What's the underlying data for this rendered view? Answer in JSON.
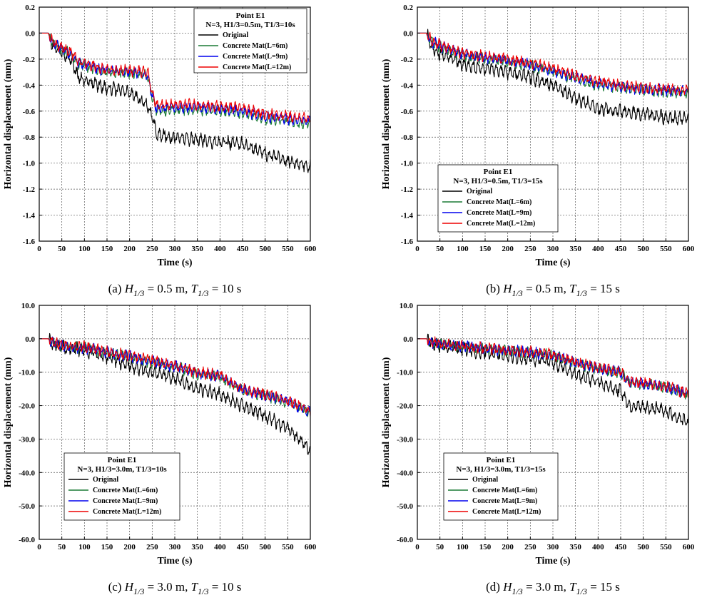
{
  "colors": {
    "Original": "#000000",
    "Concrete Mat(L=6m)": "#1a7a35",
    "Concrete Mat(L=9m)": "#0000ee",
    "Concrete Mat(L=12m)": "#ee0000"
  },
  "chart_data": [
    {
      "id": "a",
      "type": "line",
      "title": "Point E1",
      "subtitle": "N=3, H1/3=0.5m, T1/3=10s",
      "caption": "(a) H1/3 = 0.5 m, T1/3 = 10 s",
      "caption_parts": {
        "label": "(a)",
        "h": "H",
        "hsub": "1/3",
        "hval": "= 0.5 m,",
        "t": "T",
        "tsub": "1/3",
        "tval": "= 10 s"
      },
      "xlabel": "Time (s)",
      "ylabel": "Horizontal displacement (mm)",
      "xlim": [
        0,
        600
      ],
      "ylim": [
        -1.6,
        0.2
      ],
      "xticks": [
        "0",
        "50",
        "100",
        "150",
        "200",
        "250",
        "300",
        "350",
        "400",
        "450",
        "500",
        "550",
        "600"
      ],
      "yticks": [
        "0.2",
        "0.0",
        "-0.2",
        "-0.4",
        "-0.6",
        "-0.8",
        "-1.0",
        "-1.2",
        "-1.4",
        "-1.6"
      ],
      "legend_position": "top-right",
      "grid": true,
      "series": [
        {
          "name": "Original",
          "x": [
            0,
            20,
            30,
            50,
            70,
            85,
            100,
            150,
            200,
            240,
            250,
            260,
            300,
            350,
            400,
            450,
            500,
            550,
            600
          ],
          "values": [
            0,
            0,
            -0.1,
            -0.15,
            -0.2,
            -0.33,
            -0.36,
            -0.42,
            -0.46,
            -0.55,
            -0.65,
            -0.78,
            -0.8,
            -0.82,
            -0.84,
            -0.85,
            -0.93,
            -0.98,
            -1.02
          ]
        },
        {
          "name": "Concrete Mat(L=6m)",
          "x": [
            0,
            20,
            30,
            50,
            70,
            85,
            100,
            150,
            200,
            240,
            250,
            260,
            300,
            350,
            400,
            450,
            500,
            550,
            600
          ],
          "values": [
            0,
            0,
            -0.08,
            -0.12,
            -0.16,
            -0.23,
            -0.25,
            -0.3,
            -0.31,
            -0.33,
            -0.5,
            -0.6,
            -0.59,
            -0.59,
            -0.6,
            -0.62,
            -0.66,
            -0.68,
            -0.7
          ]
        },
        {
          "name": "Concrete Mat(L=9m)",
          "x": [
            0,
            20,
            30,
            50,
            70,
            85,
            100,
            150,
            200,
            240,
            250,
            260,
            300,
            350,
            400,
            450,
            500,
            550,
            600
          ],
          "values": [
            0,
            0,
            -0.08,
            -0.12,
            -0.16,
            -0.22,
            -0.24,
            -0.29,
            -0.3,
            -0.32,
            -0.48,
            -0.58,
            -0.57,
            -0.57,
            -0.58,
            -0.6,
            -0.64,
            -0.66,
            -0.68
          ]
        },
        {
          "name": "Concrete Mat(L=12m)",
          "x": [
            0,
            20,
            30,
            50,
            70,
            85,
            100,
            150,
            200,
            240,
            250,
            260,
            300,
            350,
            400,
            450,
            500,
            550,
            600
          ],
          "values": [
            0,
            0,
            -0.07,
            -0.11,
            -0.15,
            -0.21,
            -0.23,
            -0.28,
            -0.29,
            -0.3,
            -0.46,
            -0.56,
            -0.55,
            -0.55,
            -0.56,
            -0.58,
            -0.62,
            -0.64,
            -0.66
          ]
        }
      ]
    },
    {
      "id": "b",
      "type": "line",
      "title": "Point E1",
      "subtitle": "N=3, H1/3=0.5m, T1/3=15s",
      "caption": "(b) H1/3 = 0.5 m, T1/3 = 15 s",
      "caption_parts": {
        "label": "(b)",
        "h": "H",
        "hsub": "1/3",
        "hval": "= 0.5 m,",
        "t": "T",
        "tsub": "1/3",
        "tval": "= 15 s"
      },
      "xlabel": "Time (s)",
      "ylabel": "Horizontal displacement (mm)",
      "xlim": [
        0,
        600
      ],
      "ylim": [
        -1.6,
        0.2
      ],
      "xticks": [
        "0",
        "50",
        "100",
        "150",
        "200",
        "250",
        "300",
        "350",
        "400",
        "450",
        "500",
        "550",
        "600"
      ],
      "yticks": [
        "0.2",
        "0.0",
        "-0.2",
        "-0.4",
        "-0.6",
        "-0.8",
        "-1.0",
        "-1.2",
        "-1.4",
        "-1.6"
      ],
      "legend_position": "bottom-left",
      "grid": true,
      "series": [
        {
          "name": "Original",
          "x": [
            0,
            20,
            30,
            50,
            100,
            150,
            200,
            250,
            300,
            350,
            400,
            450,
            500,
            550,
            600
          ],
          "values": [
            0,
            0,
            -0.1,
            -0.16,
            -0.24,
            -0.27,
            -0.3,
            -0.34,
            -0.4,
            -0.5,
            -0.58,
            -0.6,
            -0.62,
            -0.65,
            -0.66
          ]
        },
        {
          "name": "Concrete Mat(L=6m)",
          "x": [
            0,
            20,
            30,
            50,
            100,
            150,
            200,
            250,
            300,
            350,
            400,
            450,
            500,
            550,
            600
          ],
          "values": [
            0,
            0,
            -0.06,
            -0.11,
            -0.17,
            -0.2,
            -0.22,
            -0.25,
            -0.3,
            -0.35,
            -0.4,
            -0.42,
            -0.44,
            -0.45,
            -0.46
          ]
        },
        {
          "name": "Concrete Mat(L=9m)",
          "x": [
            0,
            20,
            30,
            50,
            100,
            150,
            200,
            250,
            300,
            350,
            400,
            450,
            500,
            550,
            600
          ],
          "values": [
            0,
            0,
            -0.06,
            -0.1,
            -0.16,
            -0.19,
            -0.21,
            -0.24,
            -0.29,
            -0.34,
            -0.39,
            -0.41,
            -0.43,
            -0.44,
            -0.45
          ]
        },
        {
          "name": "Concrete Mat(L=12m)",
          "x": [
            0,
            20,
            30,
            50,
            100,
            150,
            200,
            250,
            300,
            350,
            400,
            450,
            500,
            550,
            600
          ],
          "values": [
            0,
            0,
            -0.05,
            -0.09,
            -0.15,
            -0.18,
            -0.2,
            -0.23,
            -0.27,
            -0.33,
            -0.37,
            -0.4,
            -0.42,
            -0.43,
            -0.44
          ]
        }
      ]
    },
    {
      "id": "c",
      "type": "line",
      "title": "Point E1",
      "subtitle": "N=3, H1/3=3.0m, T1/3=10s",
      "caption": "(c) H1/3 = 3.0 m, T1/3 = 10 s",
      "caption_parts": {
        "label": "(c)",
        "h": "H",
        "hsub": "1/3",
        "hval": "= 3.0 m,",
        "t": "T",
        "tsub": "1/3",
        "tval": "= 10 s"
      },
      "xlabel": "Time (s)",
      "ylabel": "Horizontal displacement (mm)",
      "xlim": [
        0,
        600
      ],
      "ylim": [
        -60,
        10
      ],
      "xticks": [
        "0",
        "50",
        "100",
        "150",
        "200",
        "250",
        "300",
        "350",
        "400",
        "450",
        "500",
        "550",
        "600"
      ],
      "yticks": [
        "10.0",
        "0.0",
        "-10.0",
        "-20.0",
        "-30.0",
        "-40.0",
        "-50.0",
        "-60.0"
      ],
      "legend_position": "bottom-left",
      "grid": true,
      "series": [
        {
          "name": "Original",
          "x": [
            0,
            20,
            30,
            50,
            100,
            150,
            200,
            250,
            300,
            350,
            400,
            450,
            500,
            550,
            600
          ],
          "values": [
            0,
            0,
            -1.5,
            -2.5,
            -3.5,
            -5.5,
            -8,
            -10,
            -12,
            -15,
            -16.5,
            -20,
            -23,
            -27,
            -33
          ]
        },
        {
          "name": "Concrete Mat(L=6m)",
          "x": [
            0,
            20,
            30,
            50,
            100,
            150,
            200,
            250,
            300,
            350,
            400,
            450,
            500,
            550,
            600
          ],
          "values": [
            0,
            0,
            -1.2,
            -2.2,
            -2.8,
            -4.2,
            -5.5,
            -7,
            -8.5,
            -10.5,
            -11.5,
            -15.5,
            -17,
            -19,
            -22
          ]
        },
        {
          "name": "Concrete Mat(L=9m)",
          "x": [
            0,
            20,
            30,
            50,
            100,
            150,
            200,
            250,
            300,
            350,
            400,
            450,
            500,
            550,
            600
          ],
          "values": [
            0,
            0,
            -1.1,
            -2.1,
            -2.7,
            -4,
            -5.3,
            -6.8,
            -8.3,
            -10.3,
            -11.3,
            -15.3,
            -16.8,
            -18.8,
            -22
          ]
        },
        {
          "name": "Concrete Mat(L=12m)",
          "x": [
            0,
            20,
            30,
            50,
            100,
            150,
            200,
            250,
            300,
            350,
            400,
            450,
            500,
            550,
            600
          ],
          "values": [
            0,
            0,
            -1,
            -2,
            -2.5,
            -3.8,
            -5,
            -6.5,
            -8,
            -10,
            -11,
            -15,
            -16.5,
            -18.5,
            -21.5
          ]
        }
      ]
    },
    {
      "id": "d",
      "type": "line",
      "title": "Point E1",
      "subtitle": "N=3, H1/3=3.0m, T1/3=15s",
      "caption": "(d) H1/3 = 3.0 m, T1/3 = 15 s",
      "caption_parts": {
        "label": "(d)",
        "h": "H",
        "hsub": "1/3",
        "hval": "= 3.0 m,",
        "t": "T",
        "tsub": "1/3",
        "tval": "= 15 s"
      },
      "xlabel": "Time (s)",
      "ylabel": "Horizontal displacement (mm)",
      "xlim": [
        0,
        600
      ],
      "ylim": [
        -60,
        10
      ],
      "xticks": [
        "0",
        "50",
        "100",
        "150",
        "200",
        "250",
        "300",
        "350",
        "400",
        "450",
        "500",
        "550",
        "600"
      ],
      "yticks": [
        "10.0",
        "0.0",
        "-10.0",
        "-20.0",
        "-30.0",
        "-40.0",
        "-50.0",
        "-60.0"
      ],
      "legend_position": "bottom-left",
      "grid": true,
      "series": [
        {
          "name": "Original",
          "x": [
            0,
            20,
            30,
            50,
            100,
            150,
            200,
            250,
            300,
            350,
            400,
            450,
            470,
            500,
            550,
            600
          ],
          "values": [
            0,
            0,
            -1.2,
            -2,
            -3,
            -4,
            -5,
            -6,
            -7,
            -10.5,
            -13,
            -15.5,
            -20,
            -20.5,
            -21.5,
            -25
          ]
        },
        {
          "name": "Concrete Mat(L=6m)",
          "x": [
            0,
            20,
            30,
            50,
            100,
            150,
            200,
            250,
            300,
            350,
            400,
            450,
            470,
            500,
            550,
            600
          ],
          "values": [
            0,
            0,
            -1,
            -1.5,
            -2.3,
            -3,
            -3.6,
            -4.2,
            -5,
            -7.3,
            -9,
            -10.3,
            -13.2,
            -13.6,
            -14.5,
            -16.7
          ]
        },
        {
          "name": "Concrete Mat(L=9m)",
          "x": [
            0,
            20,
            30,
            50,
            100,
            150,
            200,
            250,
            300,
            350,
            400,
            450,
            470,
            500,
            550,
            600
          ],
          "values": [
            0,
            0,
            -1,
            -1.5,
            -2.2,
            -2.9,
            -3.5,
            -4.1,
            -4.9,
            -7.1,
            -8.8,
            -10.1,
            -13,
            -13.4,
            -14.3,
            -16.6
          ]
        },
        {
          "name": "Concrete Mat(L=12m)",
          "x": [
            0,
            20,
            30,
            50,
            100,
            150,
            200,
            250,
            300,
            350,
            400,
            450,
            470,
            500,
            550,
            600
          ],
          "values": [
            0,
            0,
            -0.9,
            -1.4,
            -2.1,
            -2.8,
            -3.4,
            -4,
            -4.7,
            -6.9,
            -8.6,
            -9.9,
            -12.8,
            -13.2,
            -14.1,
            -16.4
          ]
        }
      ]
    }
  ]
}
